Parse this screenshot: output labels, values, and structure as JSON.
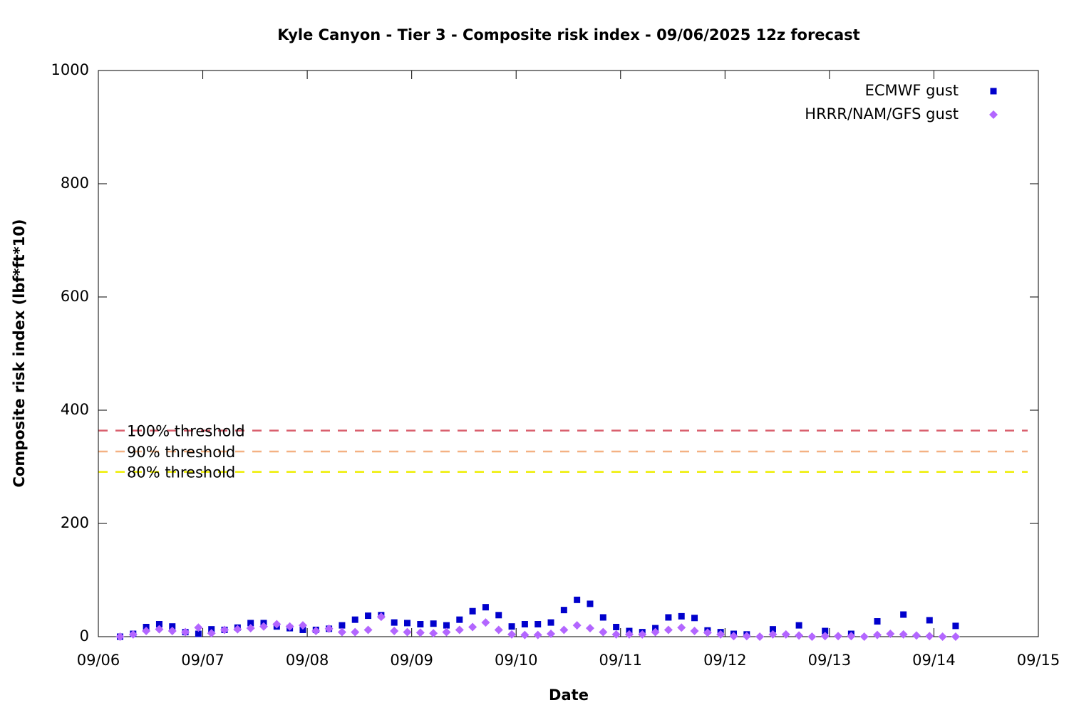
{
  "chart_data": {
    "type": "scatter",
    "title": "Kyle Canyon - Tier 3 - Composite risk index - 09/06/2025 12z forecast",
    "x_label": "Date",
    "y_label": "Composite risk index (lbf*ft*10)",
    "xlim": [
      6,
      15
    ],
    "xticks": [
      {
        "value": 6,
        "label": "09/06"
      },
      {
        "value": 7,
        "label": "09/07"
      },
      {
        "value": 8,
        "label": "09/08"
      },
      {
        "value": 9,
        "label": "09/09"
      },
      {
        "value": 10,
        "label": "09/10"
      },
      {
        "value": 11,
        "label": "09/11"
      },
      {
        "value": 12,
        "label": "09/12"
      },
      {
        "value": 13,
        "label": "09/13"
      },
      {
        "value": 14,
        "label": "09/14"
      },
      {
        "value": 15,
        "label": "09/15"
      }
    ],
    "ylim": [
      0,
      1000
    ],
    "yticks": [
      0,
      200,
      400,
      600,
      800,
      1000
    ],
    "legend": "top-right",
    "x": [
      6.208,
      6.333,
      6.458,
      6.583,
      6.708,
      6.833,
      6.958,
      7.083,
      7.208,
      7.333,
      7.458,
      7.583,
      7.708,
      7.833,
      7.958,
      8.083,
      8.208,
      8.333,
      8.458,
      8.583,
      8.708,
      8.833,
      8.958,
      9.083,
      9.208,
      9.333,
      9.458,
      9.583,
      9.708,
      9.833,
      9.958,
      10.083,
      10.208,
      10.333,
      10.458,
      10.583,
      10.708,
      10.833,
      10.958,
      11.083,
      11.208,
      11.333,
      11.458,
      11.583,
      11.708,
      11.833,
      11.958,
      12.083,
      12.208,
      12.333,
      12.458,
      12.583,
      12.708,
      12.833,
      12.958,
      13.083,
      13.208,
      13.333,
      13.458,
      13.583,
      13.708,
      13.833,
      13.958,
      14.083,
      14.208
    ],
    "series": [
      {
        "name": "ECMWF gust",
        "color": "#0000cc",
        "marker": "square",
        "values": [
          0,
          5,
          17,
          22,
          18,
          8,
          5,
          13,
          12,
          16,
          24,
          24,
          18,
          15,
          12,
          12,
          14,
          20,
          30,
          37,
          38,
          25,
          24,
          22,
          23,
          20,
          30,
          45,
          52,
          38,
          18,
          22,
          22,
          25,
          47,
          65,
          58,
          34,
          17,
          10,
          8,
          15,
          34,
          36,
          33,
          11,
          8,
          5,
          4,
          null,
          13,
          null,
          20,
          null,
          10,
          null,
          5,
          null,
          27,
          null,
          39,
          null,
          29,
          null,
          19
        ]
      },
      {
        "name": "HRRR/NAM/GFS gust",
        "color": "#b366ff",
        "marker": "diamond",
        "values": [
          0,
          4,
          10,
          13,
          10,
          8,
          16,
          6,
          12,
          13,
          15,
          18,
          22,
          18,
          20,
          10,
          14,
          8,
          8,
          12,
          35,
          10,
          8,
          7,
          6,
          8,
          12,
          17,
          25,
          12,
          4,
          3,
          3,
          5,
          12,
          20,
          15,
          8,
          4,
          4,
          4,
          8,
          12,
          16,
          10,
          7,
          4,
          1,
          1,
          0,
          4,
          4,
          2,
          0,
          1,
          1,
          1,
          0,
          3,
          5,
          4,
          2,
          1,
          0,
          0
        ]
      }
    ],
    "thresholds": [
      {
        "label": "100% threshold",
        "value": 364,
        "color": "#d9606e"
      },
      {
        "label": "90% threshold",
        "value": 327,
        "color": "#f4b183"
      },
      {
        "label": "80% threshold",
        "value": 291,
        "color": "#eeee00"
      }
    ]
  }
}
